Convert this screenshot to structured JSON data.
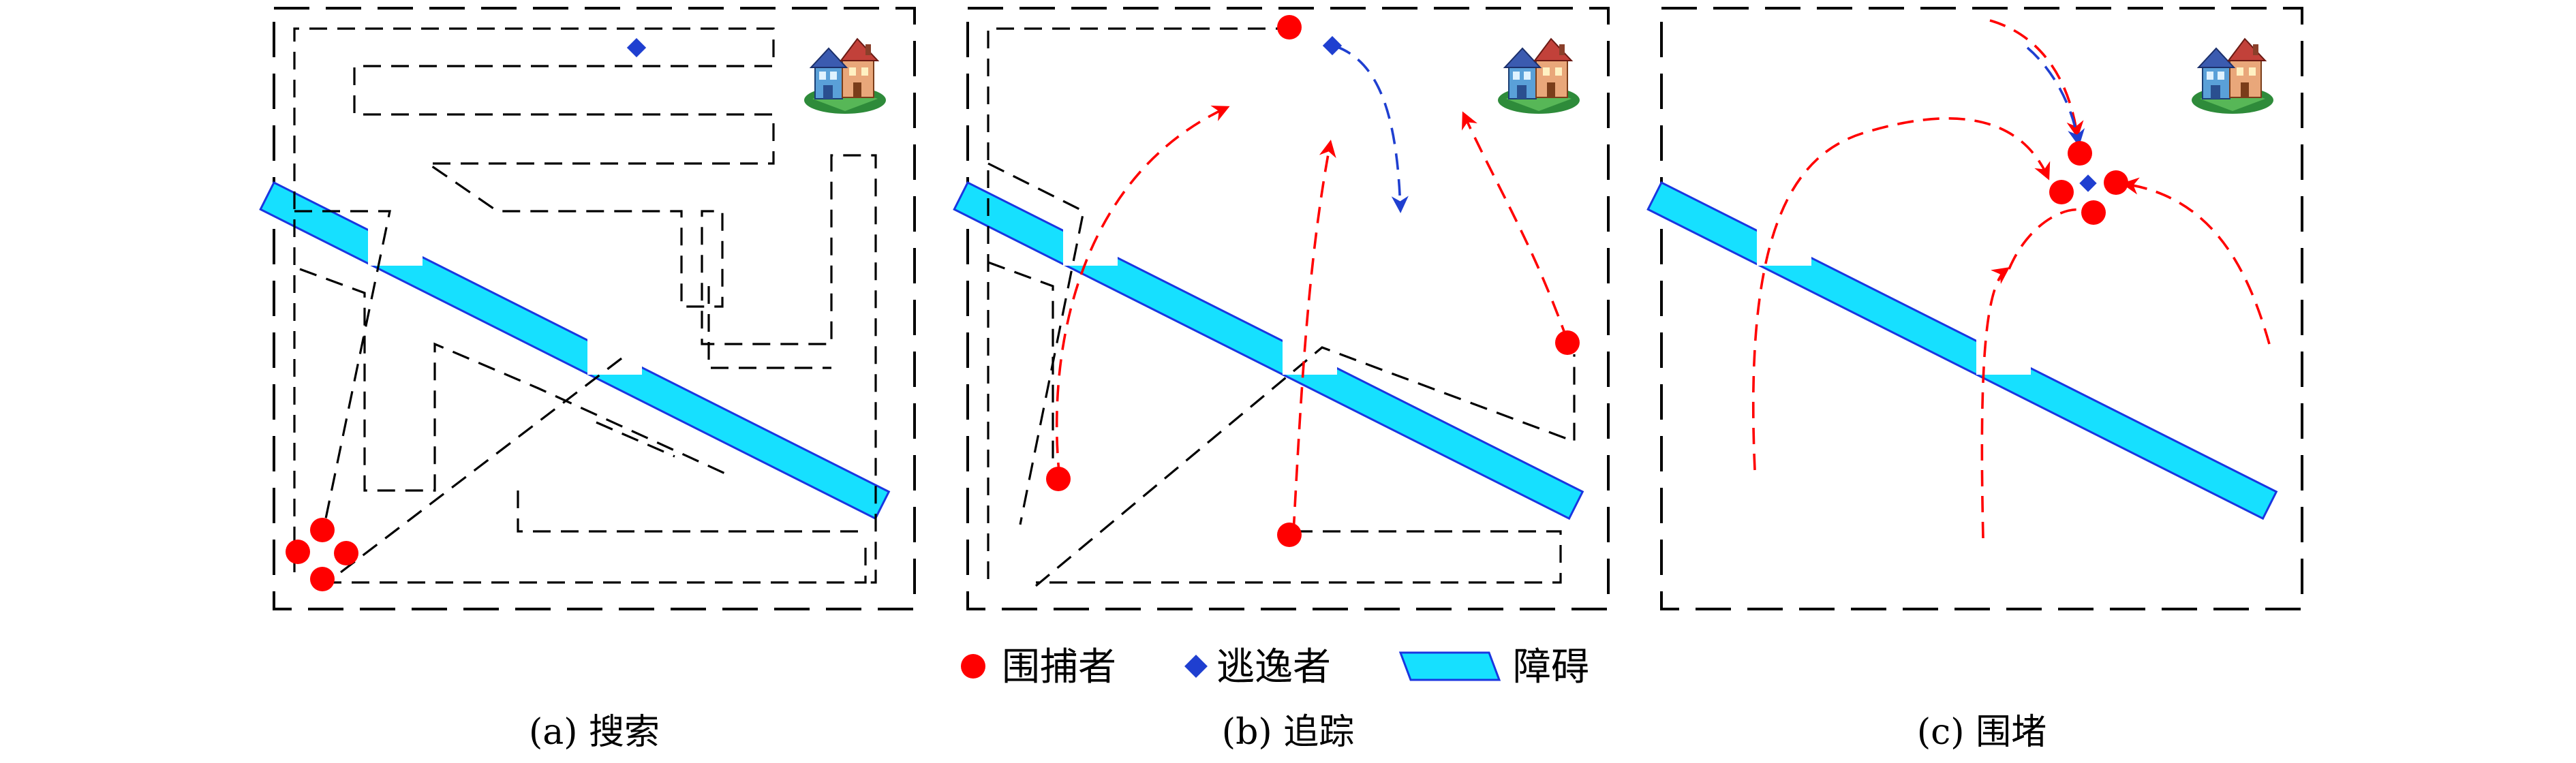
{
  "legend": {
    "pursuer_label": "围捕者",
    "evader_label": "逃逸者",
    "obstacle_label": "障碍"
  },
  "panels": [
    {
      "caption": "(a) 搜索"
    },
    {
      "caption": "(b) 追踪"
    },
    {
      "caption": "(c) 围堵"
    }
  ],
  "colors": {
    "pursuer": "#ff0000",
    "evader": "#1f3fd0",
    "obstacle_fill": "#16e0ff",
    "obstacle_edge": "#1a36e0"
  },
  "icons": {
    "house": "house-icon",
    "pursuer": "red-circle-marker",
    "evader": "blue-diamond-marker"
  }
}
